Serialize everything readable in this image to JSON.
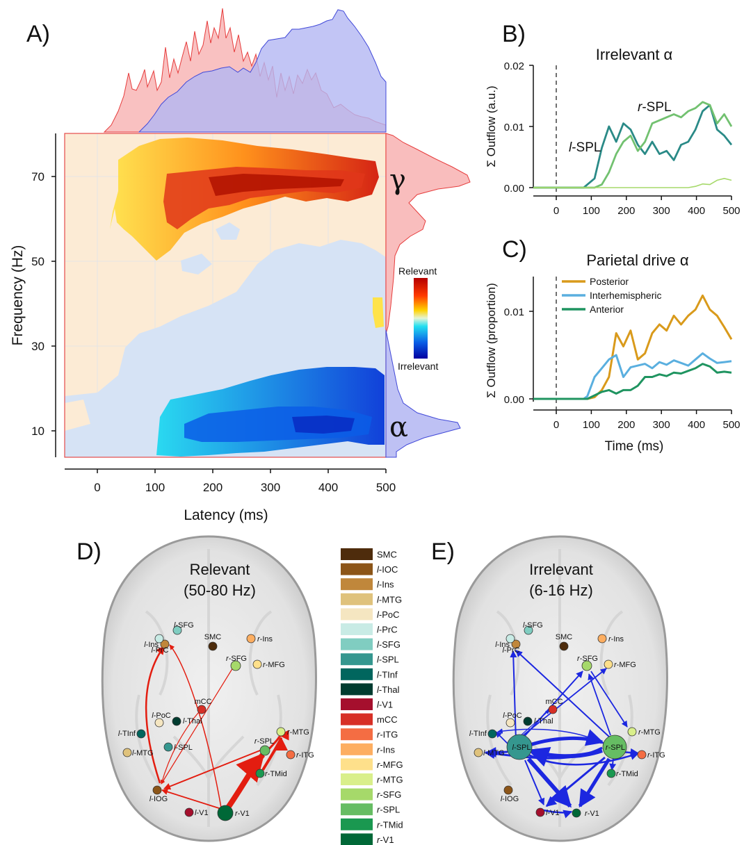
{
  "panels": {
    "A": {
      "letter": "A)",
      "xlabel": "Latency (ms)",
      "ylabel": "Frequency (Hz)",
      "xticks": [
        "0",
        "100",
        "200",
        "300",
        "400",
        "500"
      ],
      "yticks": [
        "10",
        "30",
        "50",
        "70"
      ],
      "colorbar": {
        "top": "Relevant",
        "bottom": "Irrelevant"
      },
      "band_labels": {
        "gamma": "γ",
        "alpha": "α"
      }
    },
    "B": {
      "letter": "B)",
      "title": "Irrelevant α",
      "ylabel": "Σ Outflow (a.u.)",
      "yticks": [
        "0.00",
        "0.01",
        "0.02"
      ],
      "xticks": [
        "0",
        "100",
        "200",
        "300",
        "400",
        "500"
      ],
      "annotations": [
        {
          "italic": "l",
          "rest": "-SPL"
        },
        {
          "italic": "r",
          "rest": "-SPL"
        }
      ]
    },
    "C": {
      "letter": "C)",
      "title": "Parietal drive α",
      "ylabel": "Σ Outflow (proportion)",
      "xlabel": "Time (ms)",
      "yticks": [
        "0.00",
        "0.01"
      ],
      "xticks": [
        "0",
        "100",
        "200",
        "300",
        "400",
        "500"
      ],
      "legend": [
        "Posterior",
        "Interhemispheric",
        "Anterior"
      ]
    },
    "D": {
      "letter": "D)",
      "title": [
        "Relevant",
        "(50-80 Hz)"
      ]
    },
    "E": {
      "letter": "E)",
      "title": [
        "Irrelevant",
        "(6-16 Hz)"
      ]
    }
  },
  "region_legend": [
    {
      "p": "",
      "n": "SMC",
      "color": "#4e2c0c"
    },
    {
      "p": "l",
      "n": "-IOC",
      "color": "#8c5518"
    },
    {
      "p": "l",
      "n": "-Ins",
      "color": "#c0873b"
    },
    {
      "p": "l",
      "n": "-MTG",
      "color": "#dfc27c"
    },
    {
      "p": "l",
      "n": "-PoC",
      "color": "#f5e6c1"
    },
    {
      "p": "l",
      "n": "-PrC",
      "color": "#c8ebe5"
    },
    {
      "p": "l",
      "n": "-SFG",
      "color": "#80cdc1"
    },
    {
      "p": "l",
      "n": "-SPL",
      "color": "#35978f"
    },
    {
      "p": "l",
      "n": "-TInf",
      "color": "#01665e"
    },
    {
      "p": "l",
      "n": "-Thal",
      "color": "#003c30"
    },
    {
      "p": "l",
      "n": "-V1",
      "color": "#a50f2d"
    },
    {
      "p": "",
      "n": "mCC",
      "color": "#d73027"
    },
    {
      "p": "r",
      "n": "-ITG",
      "color": "#f46d43"
    },
    {
      "p": "r",
      "n": "-Ins",
      "color": "#fdae61"
    },
    {
      "p": "r",
      "n": "-MFG",
      "color": "#fee08b"
    },
    {
      "p": "r",
      "n": "-MTG",
      "color": "#d9ef8b"
    },
    {
      "p": "r",
      "n": "-SFG",
      "color": "#a6d96a"
    },
    {
      "p": "r",
      "n": "-SPL",
      "color": "#66bd63"
    },
    {
      "p": "r",
      "n": "-TMid",
      "color": "#1a9850"
    },
    {
      "p": "r",
      "n": "-V1",
      "color": "#006837"
    }
  ],
  "nodes_D": [
    {
      "p": "l",
      "n": "-SFG",
      "color": "#80cdc1"
    },
    {
      "p": "",
      "n": "SMC",
      "color": "#4e2c0c"
    },
    {
      "p": "r",
      "n": "-Ins",
      "color": "#fdae61"
    },
    {
      "p": "l",
      "n": "-Ins",
      "color": "#c0873b"
    },
    {
      "p": "r",
      "n": "-SFG",
      "color": "#a6d96a"
    },
    {
      "p": "r",
      "n": "-MFG",
      "color": "#fee08b"
    },
    {
      "p": "l",
      "n": "-PrC",
      "color": "#c8ebe5"
    },
    {
      "p": "",
      "n": "mCC",
      "color": "#d73027"
    },
    {
      "p": "l",
      "n": "-PoC",
      "color": "#f5e6c1"
    },
    {
      "p": "l",
      "n": "-Thal",
      "color": "#003c30"
    },
    {
      "p": "l",
      "n": "-TInf",
      "color": "#01665e"
    },
    {
      "p": "r",
      "n": "-MTG",
      "color": "#d9ef8b"
    },
    {
      "p": "l",
      "n": "-SPL",
      "color": "#35978f"
    },
    {
      "p": "r",
      "n": "-SPL",
      "color": "#66bd63"
    },
    {
      "p": "l",
      "n": "-MTG",
      "color": "#dfc27c"
    },
    {
      "p": "r",
      "n": "-ITG",
      "color": "#f46d43"
    },
    {
      "p": "r",
      "n": "-TMid",
      "color": "#1a9850"
    },
    {
      "p": "l",
      "n": "-IOG",
      "color": "#8c5518"
    },
    {
      "p": "l",
      "n": "-V1",
      "color": "#a50f2d"
    },
    {
      "p": "r",
      "n": "-V1",
      "color": "#006837"
    }
  ],
  "nodes_E": [
    {
      "p": "l",
      "n": "-SFG",
      "color": "#80cdc1"
    },
    {
      "p": "",
      "n": "SMC",
      "color": "#4e2c0c"
    },
    {
      "p": "r",
      "n": "-Ins",
      "color": "#fdae61"
    },
    {
      "p": "l",
      "n": "-Ins",
      "color": "#c0873b"
    },
    {
      "p": "r",
      "n": "-SFG",
      "color": "#a6d96a"
    },
    {
      "p": "r",
      "n": "-MFG",
      "color": "#fee08b"
    },
    {
      "p": "l",
      "n": "-PrC",
      "color": "#c8ebe5"
    },
    {
      "p": "",
      "n": "mCC",
      "color": "#d73027"
    },
    {
      "p": "l",
      "n": "-PoC",
      "color": "#f5e6c1"
    },
    {
      "p": "l",
      "n": "-Thal",
      "color": "#003c30"
    },
    {
      "p": "l",
      "n": "-TInf",
      "color": "#01665e"
    },
    {
      "p": "r",
      "n": "-MTG",
      "color": "#d9ef8b"
    },
    {
      "p": "l",
      "n": "-SPL",
      "color": "#35978f"
    },
    {
      "p": "r",
      "n": "-SPL",
      "color": "#66bd63"
    },
    {
      "p": "l",
      "n": "-MTG",
      "color": "#dfc27c"
    },
    {
      "p": "r",
      "n": "-ITG",
      "color": "#f46d43"
    },
    {
      "p": "r",
      "n": "-TMid",
      "color": "#1a9850"
    },
    {
      "p": "l",
      "n": "-IOG",
      "color": "#8c5518"
    },
    {
      "p": "l",
      "n": "-V1",
      "color": "#a50f2d"
    },
    {
      "p": "r",
      "n": "-V1",
      "color": "#006837"
    }
  ],
  "chart_data": [
    {
      "type": "line",
      "panel": "B",
      "x": [
        0,
        50,
        90,
        100,
        120,
        140,
        160,
        180,
        200,
        220,
        240,
        260,
        280,
        300,
        320,
        340,
        360,
        380,
        400,
        420,
        440,
        460,
        480,
        500
      ],
      "series": [
        {
          "name": "l-SPL",
          "color": "#2a8a87",
          "values": [
            0,
            0,
            0,
            0.0005,
            0.0015,
            0.0065,
            0.01,
            0.0075,
            0.0105,
            0.0095,
            0.007,
            0.0055,
            0.0075,
            0.0055,
            0.006,
            0.0045,
            0.007,
            0.0075,
            0.0095,
            0.0125,
            0.0135,
            0.0095,
            0.0085,
            0.007
          ]
        },
        {
          "name": "r-SPL",
          "color": "#72c170",
          "values": [
            0,
            0,
            0,
            0,
            0,
            0.0005,
            0.0025,
            0.0055,
            0.0075,
            0.0085,
            0.006,
            0.0075,
            0.0105,
            0.011,
            0.0115,
            0.012,
            0.0115,
            0.0125,
            0.013,
            0.014,
            0.0135,
            0.0105,
            0.012,
            0.01
          ]
        },
        {
          "name": "",
          "color": "#a6d96a",
          "values": [
            0,
            0,
            0,
            0,
            0,
            0,
            0,
            0,
            0,
            0,
            0,
            0,
            0,
            0,
            0,
            0,
            0,
            0,
            0.0002,
            0.0006,
            0.0005,
            0.0012,
            0.0015,
            0.0012
          ]
        }
      ],
      "xlim": [
        -50,
        500
      ],
      "ylim": [
        0,
        0.02
      ]
    },
    {
      "type": "line",
      "panel": "C",
      "x": [
        0,
        50,
        90,
        100,
        120,
        140,
        160,
        180,
        200,
        220,
        240,
        260,
        280,
        300,
        320,
        340,
        360,
        380,
        400,
        420,
        440,
        460,
        480,
        500
      ],
      "series": [
        {
          "name": "Posterior",
          "color": "#d99a1b",
          "values": [
            0,
            0,
            0,
            0,
            0.0002,
            0.001,
            0.0025,
            0.0075,
            0.006,
            0.0078,
            0.0045,
            0.0052,
            0.0075,
            0.0085,
            0.0078,
            0.0095,
            0.0085,
            0.0095,
            0.0102,
            0.0118,
            0.0102,
            0.0095,
            0.0082,
            0.0068
          ]
        },
        {
          "name": "Interhemispheric",
          "color": "#5aafdf",
          "values": [
            0,
            0,
            0,
            0.0003,
            0.0025,
            0.0035,
            0.0045,
            0.005,
            0.0025,
            0.0036,
            0.0038,
            0.004,
            0.0035,
            0.0042,
            0.0039,
            0.0044,
            0.0041,
            0.0038,
            0.0045,
            0.0052,
            0.0046,
            0.0041,
            0.0042,
            0.0043
          ]
        },
        {
          "name": "Anterior",
          "color": "#1f9460",
          "values": [
            0,
            0,
            0,
            0,
            0.0004,
            0.0008,
            0.001,
            0.0006,
            0.001,
            0.001,
            0.0015,
            0.0025,
            0.0025,
            0.0028,
            0.0026,
            0.003,
            0.0029,
            0.0032,
            0.0035,
            0.004,
            0.0037,
            0.003,
            0.0031,
            0.003
          ]
        }
      ],
      "xlim": [
        -50,
        500
      ],
      "ylim": [
        0,
        0.014
      ]
    }
  ]
}
